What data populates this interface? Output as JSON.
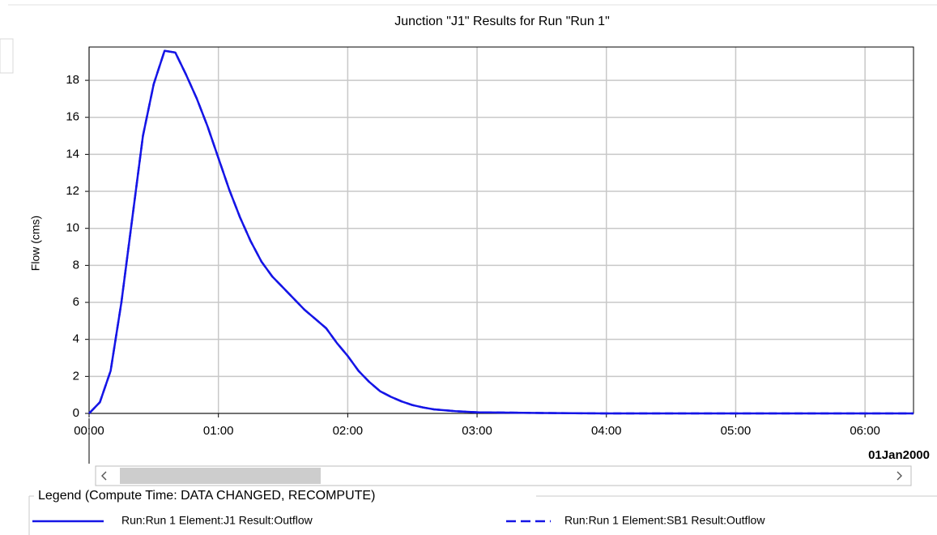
{
  "chart_data": {
    "type": "line",
    "title": "Junction \"J1\" Results for Run \"Run 1\"",
    "y_label": "Flow (cms)",
    "date_label": "01Jan2000",
    "legend_title": "Legend (Compute Time: DATA CHANGED, RECOMPUTE)",
    "x": [
      0,
      5,
      10,
      15,
      20,
      25,
      30,
      35,
      40,
      45,
      50,
      55,
      60,
      65,
      70,
      75,
      80,
      85,
      90,
      95,
      100,
      105,
      110,
      115,
      120,
      125,
      130,
      135,
      140,
      145,
      150,
      155,
      160,
      170,
      180,
      210,
      240,
      382.5
    ],
    "series": [
      {
        "name": "Run:Run 1 Element:J1 Result:Outflow",
        "color": "#1515e6",
        "dash": false,
        "values": [
          0,
          0.6,
          2.3,
          6,
          10.5,
          15,
          17.8,
          19.6,
          19.5,
          18.3,
          17,
          15.5,
          13.8,
          12.1,
          10.6,
          9.3,
          8.2,
          7.4,
          6.8,
          6.2,
          5.6,
          5.1,
          4.6,
          3.8,
          3.1,
          2.3,
          1.7,
          1.2,
          0.9,
          0.65,
          0.45,
          0.32,
          0.22,
          0.12,
          0.06,
          0.02,
          0,
          0
        ]
      },
      {
        "name": "Run:Run 1 Element:SB1 Result:Outflow",
        "color": "#1515e6",
        "dash": true,
        "values": [
          0,
          0.6,
          2.3,
          6,
          10.5,
          15,
          17.8,
          19.6,
          19.5,
          18.3,
          17,
          15.5,
          13.8,
          12.1,
          10.6,
          9.3,
          8.2,
          7.4,
          6.8,
          6.2,
          5.6,
          5.1,
          4.6,
          3.8,
          3.1,
          2.3,
          1.7,
          1.2,
          0.9,
          0.65,
          0.45,
          0.32,
          0.22,
          0.12,
          0.06,
          0.02,
          0,
          0
        ]
      }
    ],
    "xlim": [
      0,
      382.5
    ],
    "xticks": [
      {
        "value": 0,
        "label": "00:00"
      },
      {
        "value": 60,
        "label": "01:00"
      },
      {
        "value": 120,
        "label": "02:00"
      },
      {
        "value": 180,
        "label": "03:00"
      },
      {
        "value": 240,
        "label": "04:00"
      },
      {
        "value": 300,
        "label": "05:00"
      },
      {
        "value": 360,
        "label": "06:00"
      }
    ],
    "ylim": [
      0,
      19.8
    ],
    "yticks": [
      0,
      2,
      4,
      6,
      8,
      10,
      12,
      14,
      16,
      18
    ],
    "grid": true
  }
}
